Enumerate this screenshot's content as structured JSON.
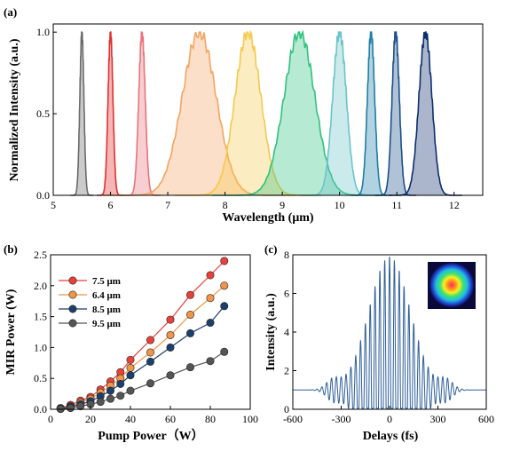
{
  "panels": {
    "a": {
      "label": "(a)",
      "xlabel": "Wavelength (μm)",
      "ylabel": "Normalized Intensity (a.u.)",
      "xticks": [
        "5",
        "6",
        "7",
        "8",
        "9",
        "10",
        "11",
        "12"
      ],
      "yticks": [
        "0.0",
        "0.5",
        "1.0"
      ]
    },
    "b": {
      "label": "(b)",
      "xlabel": "Pump Power（W）",
      "ylabel": "MIR Power (W)",
      "xticks": [
        "0",
        "20",
        "40",
        "60",
        "80",
        "100"
      ],
      "yticks": [
        "0.0",
        "0.5",
        "1.0",
        "1.5",
        "2.0",
        "2.5"
      ]
    },
    "c": {
      "label": "(c)",
      "xlabel": "Delays (fs)",
      "ylabel": "Intensity (a.u.)",
      "xticks": [
        "-600",
        "-300",
        "0",
        "300",
        "600"
      ],
      "yticks": [
        "0",
        "2",
        "4",
        "6",
        "8"
      ]
    }
  },
  "chart_data": [
    {
      "id": "a",
      "type": "line",
      "title": "",
      "xlabel": "Wavelength (μm)",
      "ylabel": "Normalized Intensity (a.u.)",
      "xlim": [
        5,
        12.5
      ],
      "ylim": [
        0,
        1.05
      ],
      "grid": false,
      "series": [
        {
          "center": 5.5,
          "width": 0.05,
          "color": "#6b6b6b"
        },
        {
          "center": 6.0,
          "width": 0.06,
          "color": "#e0312f"
        },
        {
          "center": 6.55,
          "width": 0.08,
          "color": "#e8747a"
        },
        {
          "center": 7.55,
          "width": 0.42,
          "color": "#f4a460"
        },
        {
          "center": 8.4,
          "width": 0.32,
          "color": "#f5c94e"
        },
        {
          "center": 9.3,
          "width": 0.38,
          "color": "#2ec27e"
        },
        {
          "center": 10.0,
          "width": 0.17,
          "color": "#6bc4c9"
        },
        {
          "center": 10.55,
          "width": 0.09,
          "color": "#1f7fa6"
        },
        {
          "center": 10.98,
          "width": 0.09,
          "color": "#1b4f8a"
        },
        {
          "center": 11.5,
          "width": 0.16,
          "color": "#0d2e6e"
        }
      ]
    },
    {
      "id": "b",
      "type": "line",
      "title": "",
      "xlabel": "Pump Power（W）",
      "ylabel": "MIR Power (W)",
      "xlim": [
        0,
        100
      ],
      "ylim": [
        0,
        2.5
      ],
      "grid": false,
      "legend": "top-left",
      "x": [
        5,
        10,
        15,
        20,
        25,
        30,
        35,
        40,
        50,
        60,
        70,
        80,
        87
      ],
      "series": [
        {
          "name": "7.5 μm",
          "color": "#e8413a",
          "values": [
            0.02,
            0.07,
            0.14,
            0.2,
            0.32,
            0.45,
            0.6,
            0.8,
            1.12,
            1.45,
            1.85,
            2.17,
            2.4
          ]
        },
        {
          "name": "6.4 μm",
          "color": "#f0954a",
          "values": [
            0.01,
            0.05,
            0.11,
            0.17,
            0.27,
            0.38,
            0.5,
            0.67,
            0.92,
            1.2,
            1.53,
            1.8,
            2.0
          ]
        },
        {
          "name": "8.5 μm",
          "color": "#1d3f6b",
          "values": [
            0.01,
            0.04,
            0.08,
            0.13,
            0.21,
            0.3,
            0.41,
            0.55,
            0.77,
            1.0,
            1.23,
            1.4,
            1.67
          ]
        },
        {
          "name": "9.5 μm",
          "color": "#555555",
          "values": [
            0.005,
            0.02,
            0.05,
            0.08,
            0.12,
            0.17,
            0.22,
            0.3,
            0.42,
            0.55,
            0.68,
            0.78,
            0.93
          ]
        }
      ]
    },
    {
      "id": "c",
      "type": "line",
      "title": "",
      "xlabel": "Delays (fs)",
      "ylabel": "Intensity (a.u.)",
      "xlim": [
        -600,
        600
      ],
      "ylim": [
        0,
        8
      ],
      "grid": false,
      "inset": "beam profile image (top-right)",
      "series": [
        {
          "color": "#2f5f9a",
          "baseline": 1.0,
          "peak": 7.9,
          "period_fs": 30,
          "envelope_width_fs": 180,
          "side_lobe_center_fs": 350,
          "side_lobe_amp": 0.5
        }
      ]
    }
  ]
}
